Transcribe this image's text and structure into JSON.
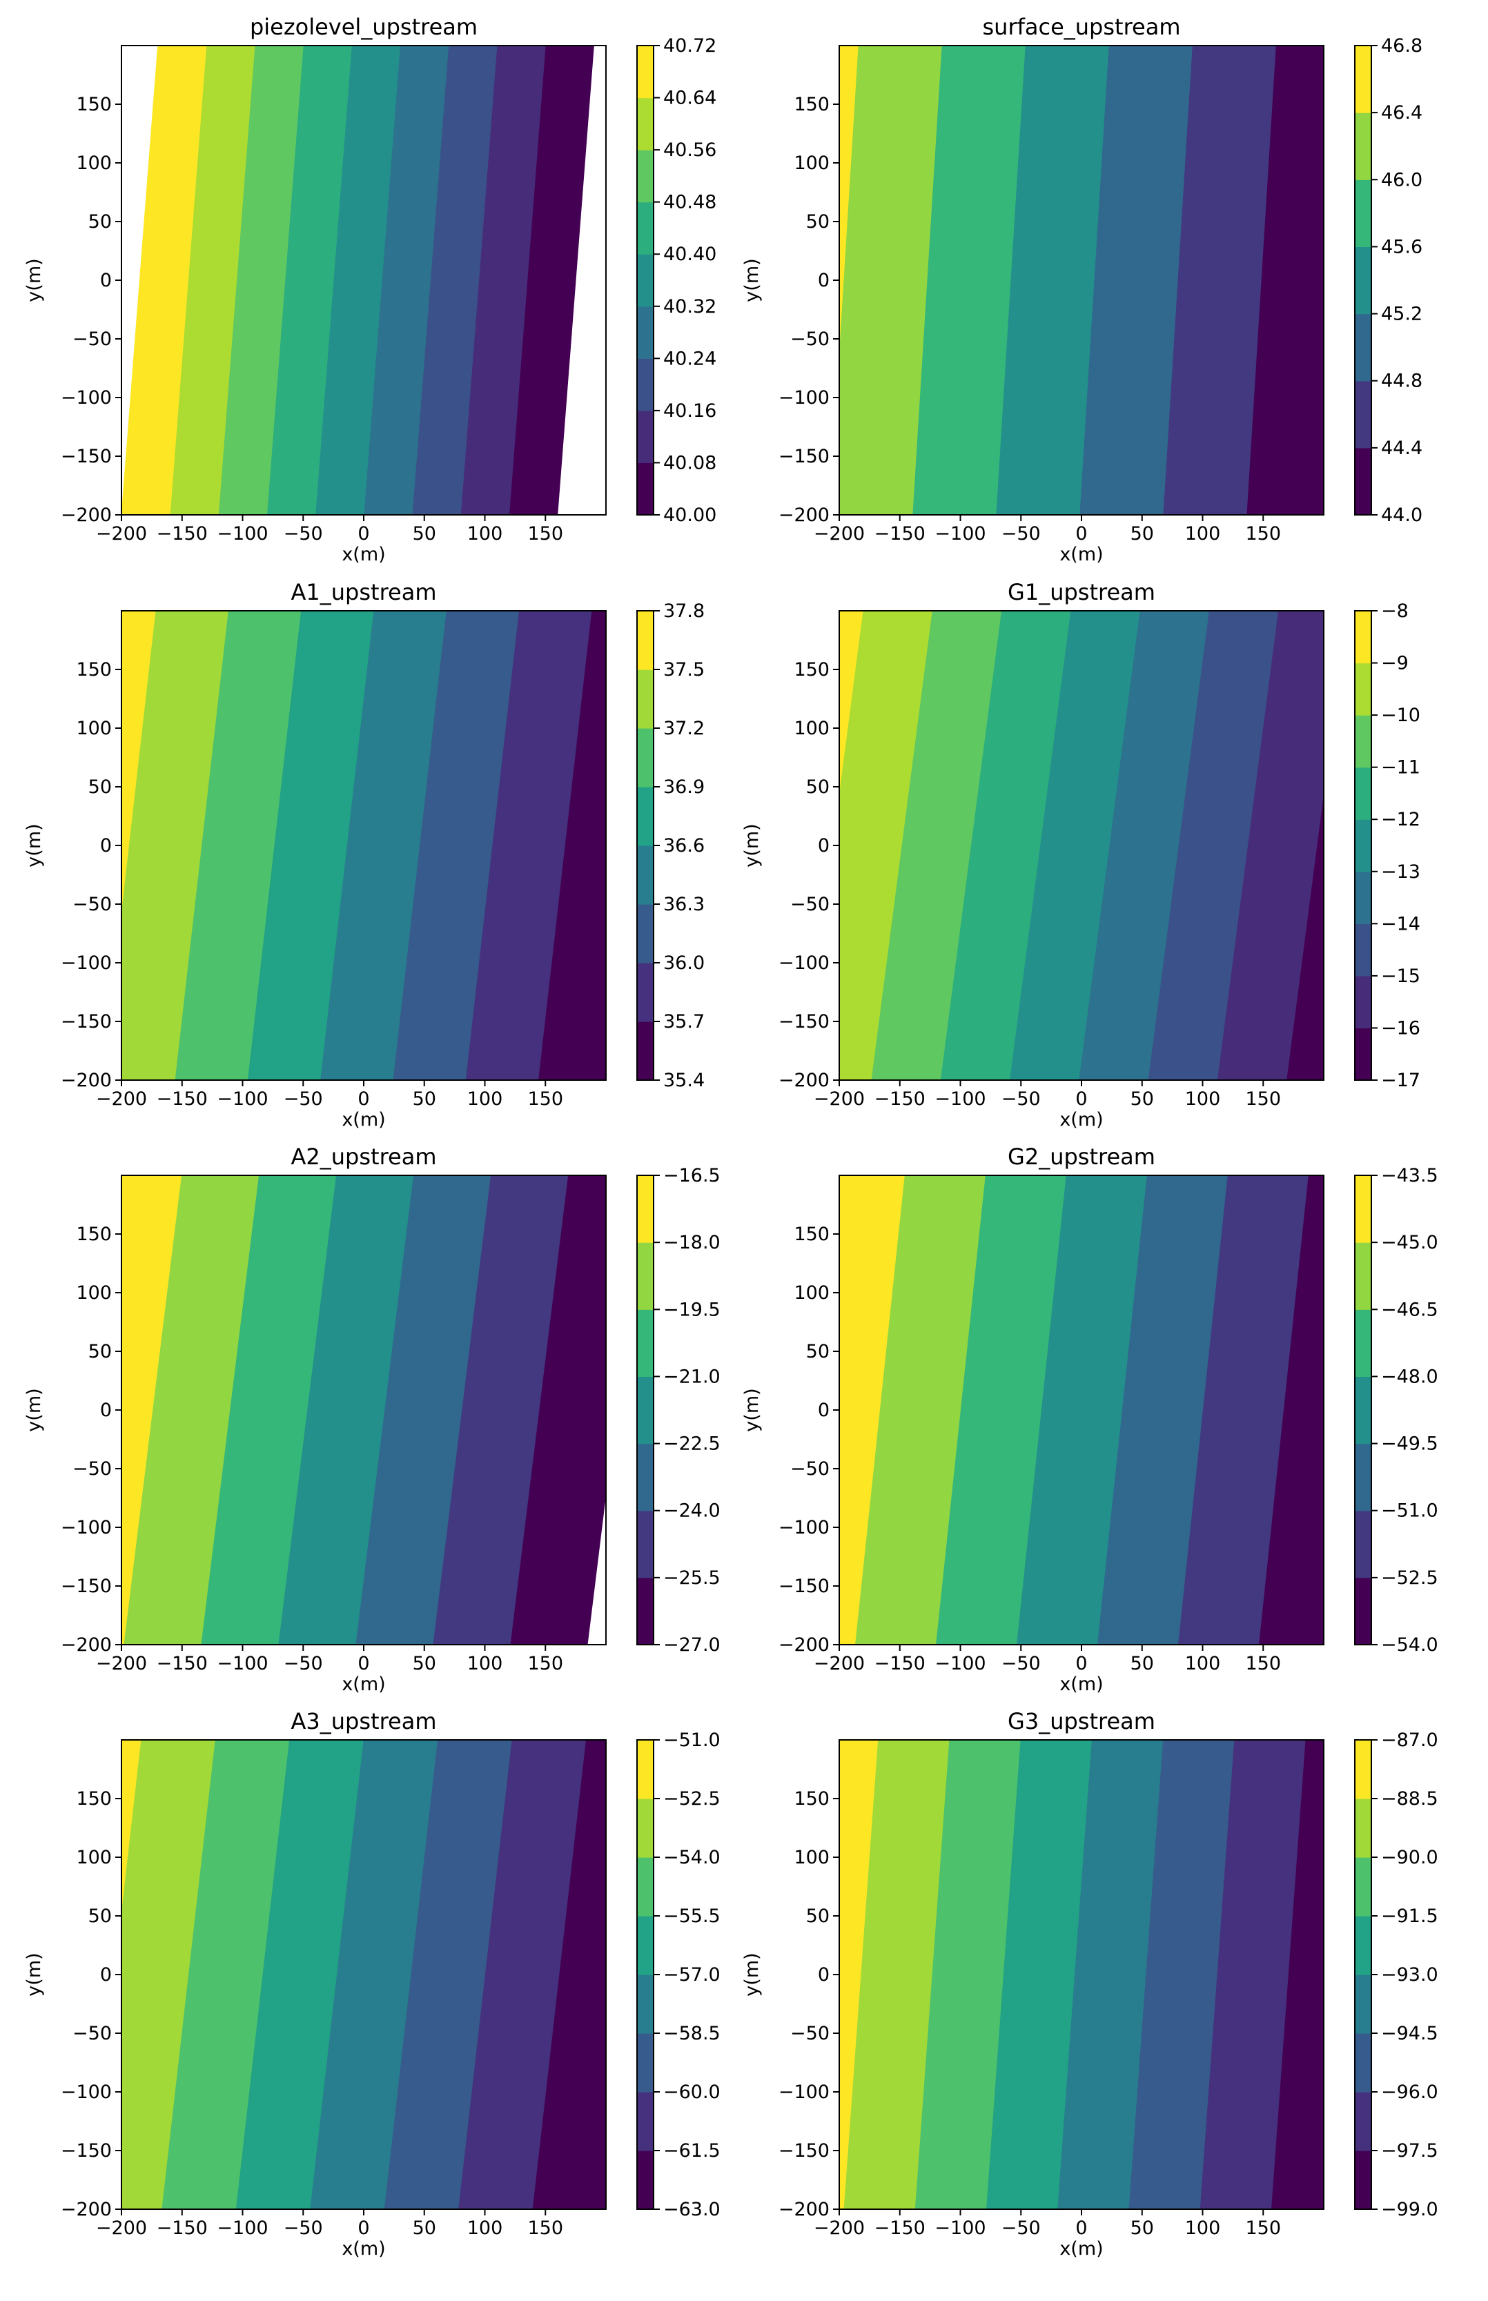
{
  "chart_data": [
    {
      "type": "heatmap",
      "title": "piezolevel_upstream",
      "xlabel": "x(m)",
      "ylabel": "y(m)",
      "xlim": [
        -200,
        200
      ],
      "ylim": [
        -200,
        200
      ],
      "xticks": [
        "−200",
        "−150",
        "−100",
        "−50",
        "0",
        "50",
        "100",
        "150"
      ],
      "yticks": [
        "−200",
        "−150",
        "−100",
        "−50",
        "0",
        "50",
        "100",
        "150"
      ],
      "levels": [
        40.0,
        40.08,
        40.16,
        40.24,
        40.32,
        40.4,
        40.48,
        40.56,
        40.64,
        40.72
      ],
      "level_labels": [
        "40.00",
        "40.08",
        "40.16",
        "40.24",
        "40.32",
        "40.40",
        "40.48",
        "40.56",
        "40.64",
        "40.72"
      ],
      "gradient_dx": -0.002,
      "gradient_dy": 0.00015,
      "value_at_origin": 40.35
    },
    {
      "type": "heatmap",
      "title": "surface_upstream",
      "xlabel": "x(m)",
      "ylabel": "y(m)",
      "xlim": [
        -200,
        200
      ],
      "ylim": [
        -200,
        200
      ],
      "xticks": [
        "−200",
        "−150",
        "−100",
        "−50",
        "0",
        "50",
        "100",
        "150"
      ],
      "yticks": [
        "−200",
        "−150",
        "−100",
        "−50",
        "0",
        "50",
        "100",
        "150"
      ],
      "levels": [
        44.0,
        44.4,
        44.8,
        45.2,
        45.6,
        46.0,
        46.4,
        46.8
      ],
      "level_labels": [
        "44.0",
        "44.4",
        "44.8",
        "45.2",
        "45.6",
        "46.0",
        "46.4",
        "46.8"
      ],
      "gradient_dx": -0.0058,
      "gradient_dy": 0.00035,
      "value_at_origin": 45.26
    },
    {
      "type": "heatmap",
      "title": "A1_upstream",
      "xlabel": "x(m)",
      "ylabel": "y(m)",
      "xlim": [
        -200,
        200
      ],
      "ylim": [
        -200,
        200
      ],
      "xticks": [
        "−200",
        "−150",
        "−100",
        "−50",
        "0",
        "50",
        "100",
        "150"
      ],
      "yticks": [
        "−200",
        "−150",
        "−100",
        "−50",
        "0",
        "50",
        "100",
        "150"
      ],
      "levels": [
        35.4,
        35.7,
        36.0,
        36.3,
        36.6,
        36.9,
        37.2,
        37.5,
        37.8
      ],
      "level_labels": [
        "35.4",
        "35.7",
        "36.0",
        "36.3",
        "36.6",
        "36.9",
        "37.2",
        "37.5",
        "37.8"
      ],
      "gradient_dx": -0.005,
      "gradient_dy": 0.00055,
      "value_at_origin": 36.53
    },
    {
      "type": "heatmap",
      "title": "G1_upstream",
      "xlabel": "x(m)",
      "ylabel": "y(m)",
      "xlim": [
        -200,
        200
      ],
      "ylim": [
        -200,
        200
      ],
      "xticks": [
        "−200",
        "−150",
        "−100",
        "−50",
        "0",
        "50",
        "100",
        "150"
      ],
      "yticks": [
        "−200",
        "−150",
        "−100",
        "−50",
        "0",
        "50",
        "100",
        "150"
      ],
      "levels": [
        -17,
        -16,
        -15,
        -14,
        -13,
        -12,
        -11,
        -10,
        -9,
        -8
      ],
      "level_labels": [
        "−17",
        "−16",
        "−15",
        "−14",
        "−13",
        "−12",
        "−11",
        "−10",
        "−9",
        "−8"
      ],
      "gradient_dx": -0.0175,
      "gradient_dy": 0.0022,
      "value_at_origin": -12.6
    },
    {
      "type": "heatmap",
      "title": "A2_upstream",
      "xlabel": "x(m)",
      "ylabel": "y(m)",
      "xlim": [
        -200,
        200
      ],
      "ylim": [
        -200,
        200
      ],
      "xticks": [
        "−200",
        "−150",
        "−100",
        "−50",
        "0",
        "50",
        "100",
        "150"
      ],
      "yticks": [
        "−200",
        "−150",
        "−100",
        "−50",
        "0",
        "50",
        "100",
        "150"
      ],
      "levels": [
        -27.0,
        -25.5,
        -24.0,
        -22.5,
        -21.0,
        -19.5,
        -18.0,
        -16.5
      ],
      "level_labels": [
        "−27.0",
        "−25.5",
        "−24.0",
        "−22.5",
        "−21.0",
        "−19.5",
        "−18.0",
        "−16.5"
      ],
      "gradient_dx": -0.0235,
      "gradient_dy": 0.0028,
      "value_at_origin": -22.1
    },
    {
      "type": "heatmap",
      "title": "G2_upstream",
      "xlabel": "x(m)",
      "ylabel": "y(m)",
      "xlim": [
        -200,
        200
      ],
      "ylim": [
        -200,
        200
      ],
      "xticks": [
        "−200",
        "−150",
        "−100",
        "−50",
        "0",
        "50",
        "100",
        "150"
      ],
      "yticks": [
        "−200",
        "−150",
        "−100",
        "−50",
        "0",
        "50",
        "100",
        "150"
      ],
      "levels": [
        -54.0,
        -52.5,
        -51.0,
        -49.5,
        -48.0,
        -46.5,
        -45.0,
        -43.5
      ],
      "level_labels": [
        "−54.0",
        "−52.5",
        "−51.0",
        "−49.5",
        "−48.0",
        "−46.5",
        "−45.0",
        "−43.5"
      ],
      "gradient_dx": -0.0225,
      "gradient_dy": 0.0023,
      "value_at_origin": -48.75
    },
    {
      "type": "heatmap",
      "title": "A3_upstream",
      "xlabel": "x(m)",
      "ylabel": "y(m)",
      "xlim": [
        -200,
        200
      ],
      "ylim": [
        -200,
        200
      ],
      "xticks": [
        "−200",
        "−150",
        "−100",
        "−50",
        "0",
        "50",
        "100",
        "150"
      ],
      "yticks": [
        "−200",
        "−150",
        "−100",
        "−50",
        "0",
        "50",
        "100",
        "150"
      ],
      "levels": [
        -63.0,
        -61.5,
        -60.0,
        -58.5,
        -57.0,
        -55.5,
        -54.0,
        -52.5,
        -51.0
      ],
      "level_labels": [
        "−63.0",
        "−61.5",
        "−60.0",
        "−58.5",
        "−57.0",
        "−55.5",
        "−54.0",
        "−52.5",
        "−51.0"
      ],
      "gradient_dx": -0.0245,
      "gradient_dy": 0.0027,
      "value_at_origin": -57.55
    },
    {
      "type": "heatmap",
      "title": "G3_upstream",
      "xlabel": "x(m)",
      "ylabel": "y(m)",
      "xlim": [
        -200,
        200
      ],
      "ylim": [
        -200,
        200
      ],
      "xticks": [
        "−200",
        "−150",
        "−100",
        "−50",
        "0",
        "50",
        "100",
        "150"
      ],
      "yticks": [
        "−200",
        "−150",
        "−100",
        "−50",
        "0",
        "50",
        "100",
        "150"
      ],
      "levels": [
        -99.0,
        -97.5,
        -96.0,
        -94.5,
        -93.0,
        -91.5,
        -90.0,
        -88.5,
        -87.0
      ],
      "level_labels": [
        "−99.0",
        "−97.5",
        "−96.0",
        "−94.5",
        "−93.0",
        "−91.5",
        "−90.0",
        "−88.5",
        "−87.0"
      ],
      "gradient_dx": -0.0255,
      "gradient_dy": 0.0018,
      "value_at_origin": -93.15
    }
  ]
}
